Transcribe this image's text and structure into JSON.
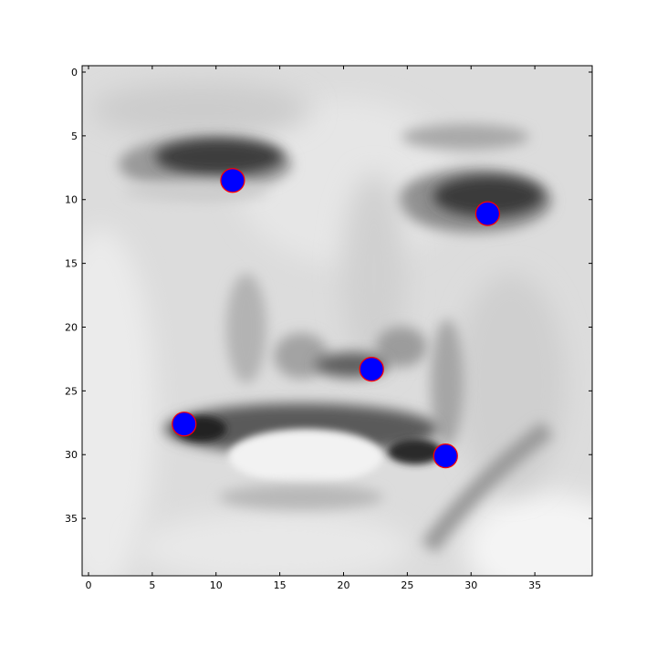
{
  "chart_data": {
    "type": "scatter",
    "title": "",
    "xlabel": "",
    "ylabel": "",
    "xlim": [
      -0.5,
      39.5
    ],
    "ylim": [
      39.5,
      -0.5
    ],
    "y_inverted": true,
    "grid": false,
    "background": "grayscale face image (40x40 pixels)",
    "x_ticks": [
      "0",
      "5",
      "10",
      "15",
      "20",
      "25",
      "30",
      "35"
    ],
    "y_ticks": [
      "0",
      "5",
      "10",
      "15",
      "20",
      "25",
      "30",
      "35"
    ],
    "marker_color": "#0000ff",
    "marker_edge_color": "#ff0000",
    "points": [
      {
        "x": 11.3,
        "y": 8.5
      },
      {
        "x": 31.3,
        "y": 11.1
      },
      {
        "x": 22.2,
        "y": 23.3
      },
      {
        "x": 7.5,
        "y": 27.6
      },
      {
        "x": 28.0,
        "y": 30.1
      }
    ]
  }
}
